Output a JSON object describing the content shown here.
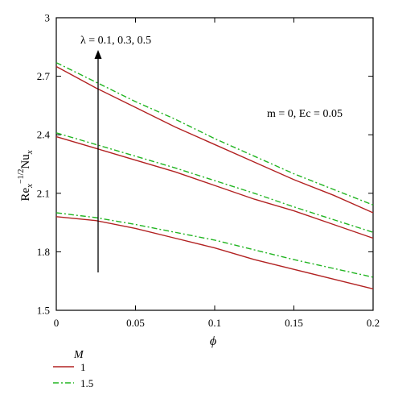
{
  "chart_data": {
    "type": "line",
    "title": "",
    "xlabel": "ϕ",
    "ylabel": "Re_x^{-1/2} Nu_x",
    "xlim": [
      0,
      0.2
    ],
    "ylim": [
      1.5,
      3.0
    ],
    "x_ticks": [
      "0",
      "0.05",
      "0.1",
      "0.15",
      "0.2"
    ],
    "y_ticks": [
      "1.5",
      "1.8",
      "2.1",
      "2.4",
      "2.7",
      "3"
    ],
    "grid": false,
    "annotations": {
      "lambda_text": "λ = 0.1, 0.3, 0.5",
      "params_text": "m = 0, Ec = 0.05"
    },
    "legend": {
      "title": "M",
      "placement": "bottom-left",
      "entries": [
        {
          "label": "1",
          "color": "#b22222",
          "dash": "solid"
        },
        {
          "label": "1.5",
          "color": "#22b522",
          "dash": "dashdot"
        }
      ]
    },
    "x": [
      0,
      0.025,
      0.05,
      0.075,
      0.1,
      0.125,
      0.15,
      0.175,
      0.2
    ],
    "series": [
      {
        "M": "1",
        "lambda": "0.1",
        "color": "#b22222",
        "dash": "solid",
        "values": [
          1.98,
          1.96,
          1.92,
          1.87,
          1.82,
          1.76,
          1.71,
          1.66,
          1.61
        ]
      },
      {
        "M": "1.5",
        "lambda": "0.1",
        "color": "#22b522",
        "dash": "dashdot",
        "values": [
          2.0,
          1.975,
          1.94,
          1.9,
          1.86,
          1.81,
          1.76,
          1.715,
          1.67
        ]
      },
      {
        "M": "1",
        "lambda": "0.3",
        "color": "#b22222",
        "dash": "solid",
        "values": [
          2.39,
          2.33,
          2.27,
          2.21,
          2.14,
          2.07,
          2.01,
          1.94,
          1.87
        ]
      },
      {
        "M": "1.5",
        "lambda": "0.3",
        "color": "#22b522",
        "dash": "dashdot",
        "values": [
          2.41,
          2.35,
          2.29,
          2.23,
          2.165,
          2.1,
          2.03,
          1.965,
          1.9
        ]
      },
      {
        "M": "1",
        "lambda": "0.5",
        "color": "#b22222",
        "dash": "solid",
        "values": [
          2.75,
          2.64,
          2.54,
          2.44,
          2.35,
          2.26,
          2.17,
          2.09,
          2.0
        ]
      },
      {
        "M": "1.5",
        "lambda": "0.5",
        "color": "#22b522",
        "dash": "dashdot",
        "values": [
          2.77,
          2.67,
          2.57,
          2.48,
          2.38,
          2.29,
          2.2,
          2.12,
          2.04
        ]
      }
    ]
  }
}
